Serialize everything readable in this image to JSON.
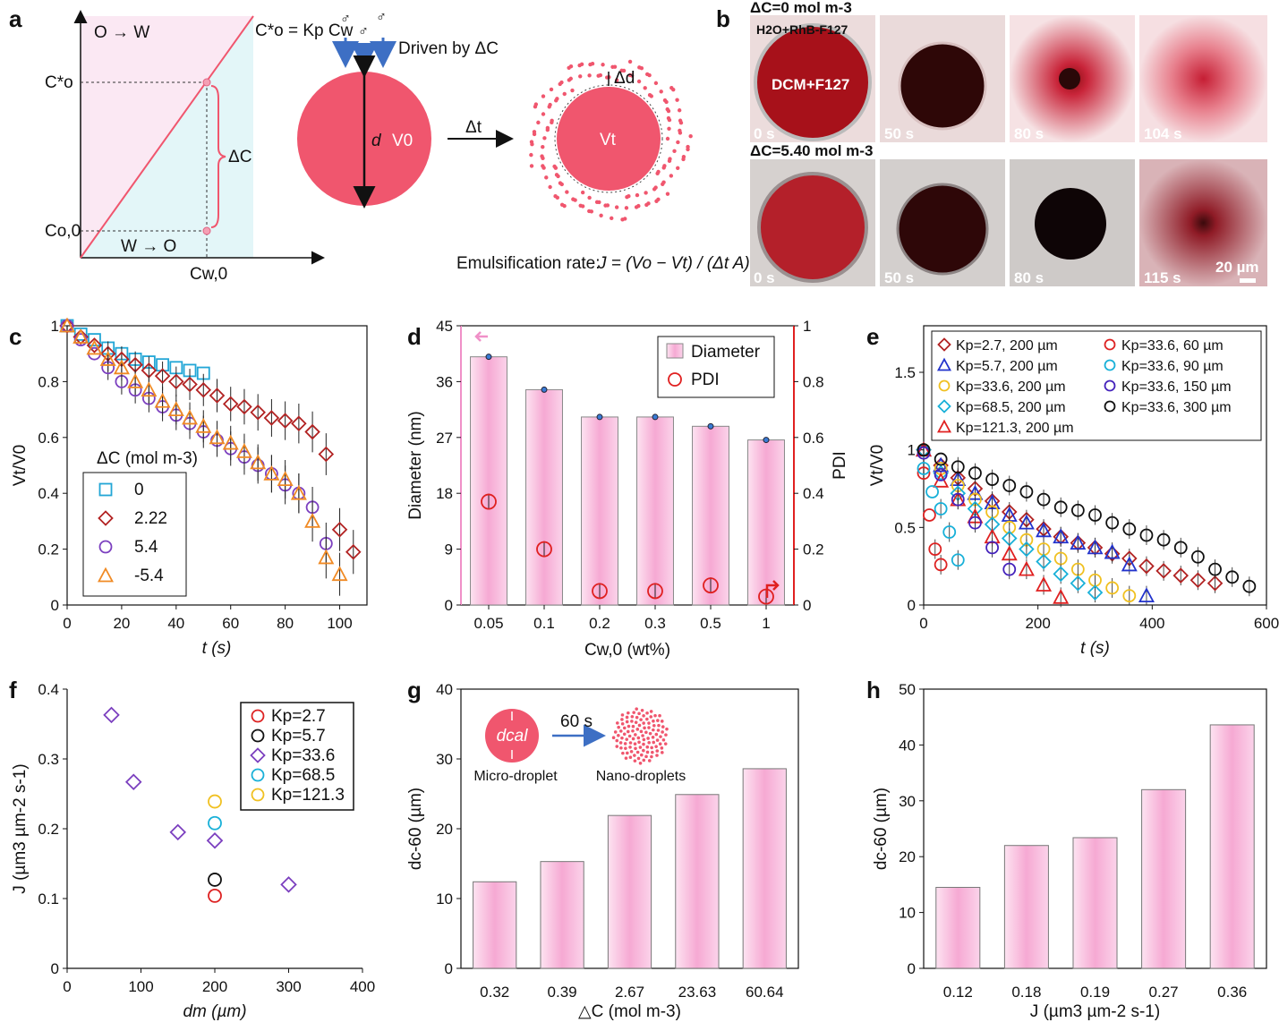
{
  "panel_labels": [
    "a",
    "b",
    "c",
    "d",
    "e",
    "f",
    "g",
    "h"
  ],
  "panel_a": {
    "region_top": "O → W",
    "region_bottom": "W → O",
    "equation": "C*o = Kp Cw",
    "y_labels": [
      "C*o",
      "Co,0"
    ],
    "x_label": "Cw,0",
    "delta_label": "ΔC",
    "driven_label": "Driven by ΔC",
    "d_label": "d",
    "v0_label": "V0",
    "vt_label": "Vt",
    "dt_label": "Δt",
    "dd_label": "Δd",
    "rate_label": "Emulsification rate:",
    "rate_formula": "J = (Vo − Vt) / (Δt A)"
  },
  "panel_b": {
    "row1_title": "ΔC=0 mol m-3",
    "row2_title": "ΔC=5.40 mol m-3",
    "inset_top": "H2O+RhB-F127",
    "inset_drop": "DCM+F127",
    "row1_times": [
      "0 s",
      "50 s",
      "80 s",
      "104 s"
    ],
    "row2_times": [
      "0 s",
      "50 s",
      "80 s",
      "115 s"
    ],
    "scale_bar": "20 µm"
  },
  "chart_data": [
    {
      "id": "c",
      "type": "scatter",
      "xlabel": "t (s)",
      "ylabel": "Vt/V0",
      "xlim": [
        0,
        110
      ],
      "ylim": [
        0,
        1
      ],
      "xticks": [
        0,
        20,
        40,
        60,
        80,
        100
      ],
      "yticks": [
        0,
        0.2,
        0.4,
        0.6,
        0.8,
        1
      ],
      "legend_title": "ΔC (mol m-3)",
      "series": [
        {
          "name": "0",
          "marker": "square",
          "color": "#22a6d6",
          "x": [
            0,
            5,
            10,
            15,
            20,
            25,
            30,
            35,
            40,
            45,
            50
          ],
          "y": [
            1,
            0.97,
            0.95,
            0.92,
            0.9,
            0.88,
            0.87,
            0.86,
            0.85,
            0.84,
            0.83
          ]
        },
        {
          "name": "2.22",
          "marker": "diamond",
          "color": "#b22222",
          "x": [
            0,
            5,
            10,
            15,
            20,
            25,
            30,
            35,
            40,
            45,
            50,
            55,
            60,
            65,
            70,
            75,
            80,
            85,
            90,
            95,
            100,
            105
          ],
          "y": [
            1,
            0.96,
            0.93,
            0.9,
            0.88,
            0.86,
            0.84,
            0.82,
            0.8,
            0.79,
            0.77,
            0.75,
            0.72,
            0.71,
            0.69,
            0.67,
            0.66,
            0.65,
            0.62,
            0.54,
            0.27,
            0.19
          ]
        },
        {
          "name": "5.4",
          "marker": "circle",
          "color": "#7b3fbf",
          "x": [
            0,
            5,
            10,
            15,
            20,
            25,
            30,
            35,
            40,
            45,
            50,
            55,
            60,
            65,
            70,
            75,
            80,
            85,
            90,
            95
          ],
          "y": [
            1,
            0.95,
            0.9,
            0.85,
            0.8,
            0.77,
            0.74,
            0.71,
            0.68,
            0.65,
            0.62,
            0.59,
            0.56,
            0.53,
            0.5,
            0.47,
            0.43,
            0.4,
            0.35,
            0.22
          ]
        },
        {
          "name": "-5.4",
          "marker": "triangle",
          "color": "#f08a24",
          "x": [
            0,
            5,
            10,
            15,
            20,
            25,
            30,
            35,
            40,
            45,
            50,
            55,
            60,
            65,
            70,
            75,
            80,
            85,
            90,
            95,
            100
          ],
          "y": [
            1,
            0.96,
            0.92,
            0.88,
            0.85,
            0.8,
            0.77,
            0.73,
            0.7,
            0.67,
            0.64,
            0.6,
            0.58,
            0.55,
            0.51,
            0.47,
            0.45,
            0.4,
            0.3,
            0.17,
            0.11
          ]
        }
      ]
    },
    {
      "id": "d",
      "type": "bar",
      "categories": [
        "0.05",
        "0.1",
        "0.2",
        "0.3",
        "0.5",
        "1"
      ],
      "series": [
        {
          "name": "Diameter",
          "axis": "left",
          "values": [
            40,
            34.7,
            30.3,
            30.3,
            28.8,
            26.6
          ]
        },
        {
          "name": "PDI",
          "axis": "right",
          "values": [
            0.37,
            0.2,
            0.05,
            0.05,
            0.07,
            0.03
          ]
        }
      ],
      "xlabel": "Cw,0 (wt%)",
      "ylabel": "Diameter (nm)",
      "y2label": "PDI",
      "ylim": [
        0,
        45
      ],
      "yticks": [
        0,
        9,
        18,
        27,
        36,
        45
      ],
      "y2lim": [
        0,
        1
      ],
      "y2ticks": [
        0,
        0.2,
        0.4,
        0.6,
        0.8,
        1
      ]
    },
    {
      "id": "e",
      "type": "scatter",
      "xlabel": "t (s)",
      "ylabel": "Vt/V0",
      "xlim": [
        0,
        600
      ],
      "ylim": [
        0,
        1.8
      ],
      "xticks": [
        0,
        200,
        400,
        600
      ],
      "yticks": [
        0,
        0.5,
        1,
        1.5
      ],
      "series": [
        {
          "name": "Kp=2.7, 200 µm",
          "marker": "diamond",
          "color": "#b22222",
          "x": [
            0,
            30,
            60,
            90,
            120,
            150,
            180,
            210,
            240,
            270,
            300,
            330,
            360,
            390,
            420,
            450,
            480,
            510
          ],
          "y": [
            1,
            0.9,
            0.82,
            0.75,
            0.67,
            0.6,
            0.55,
            0.49,
            0.44,
            0.4,
            0.37,
            0.33,
            0.3,
            0.25,
            0.22,
            0.19,
            0.16,
            0.14
          ]
        },
        {
          "name": "Kp=5.7, 200 µm",
          "marker": "triangle",
          "color": "#2233cc",
          "x": [
            0,
            30,
            60,
            90,
            120,
            150,
            180,
            210,
            240,
            270,
            300,
            330,
            360,
            390
          ],
          "y": [
            1,
            0.9,
            0.81,
            0.72,
            0.66,
            0.58,
            0.53,
            0.48,
            0.44,
            0.4,
            0.37,
            0.34,
            0.26,
            0.06
          ]
        },
        {
          "name": "Kp=33.6, 200 µm",
          "marker": "circle",
          "color": "#f0c020",
          "x": [
            0,
            30,
            60,
            90,
            120,
            150,
            180,
            210,
            240,
            270,
            300,
            330,
            360
          ],
          "y": [
            1,
            0.88,
            0.77,
            0.68,
            0.6,
            0.5,
            0.42,
            0.36,
            0.3,
            0.23,
            0.16,
            0.11,
            0.06
          ]
        },
        {
          "name": "Kp=68.5, 200 µm",
          "marker": "diamond",
          "color": "#18b0d8",
          "x": [
            0,
            30,
            60,
            90,
            120,
            150,
            180,
            210,
            240,
            270,
            300
          ],
          "y": [
            1,
            0.85,
            0.72,
            0.62,
            0.52,
            0.43,
            0.36,
            0.28,
            0.2,
            0.14,
            0.08
          ]
        },
        {
          "name": "Kp=121.3, 200 µm",
          "marker": "triangle",
          "color": "#e02020",
          "x": [
            0,
            30,
            60,
            90,
            120,
            150,
            180,
            210,
            240
          ],
          "y": [
            1,
            0.8,
            0.68,
            0.57,
            0.44,
            0.33,
            0.23,
            0.13,
            0.05
          ]
        },
        {
          "name": "Kp=33.6, 60 µm",
          "marker": "circle",
          "color": "#dd2222",
          "x": [
            0,
            10,
            20,
            30
          ],
          "y": [
            0.85,
            0.58,
            0.36,
            0.26
          ]
        },
        {
          "name": "Kp=33.6, 90 µm",
          "marker": "circle",
          "color": "#18b0d8",
          "x": [
            0,
            15,
            30,
            45,
            60
          ],
          "y": [
            0.88,
            0.73,
            0.62,
            0.47,
            0.29
          ]
        },
        {
          "name": "Kp=33.6, 150 µm",
          "marker": "circle",
          "color": "#4422bb",
          "x": [
            0,
            30,
            60,
            90,
            120,
            150
          ],
          "y": [
            0.98,
            0.84,
            0.68,
            0.53,
            0.37,
            0.23
          ]
        },
        {
          "name": "Kp=33.6, 300 µm",
          "marker": "circle",
          "color": "#111111",
          "x": [
            0,
            30,
            60,
            90,
            120,
            150,
            180,
            210,
            240,
            270,
            300,
            330,
            360,
            390,
            420,
            450,
            480,
            510,
            540,
            570
          ],
          "y": [
            1,
            0.94,
            0.89,
            0.85,
            0.81,
            0.77,
            0.73,
            0.68,
            0.63,
            0.61,
            0.58,
            0.53,
            0.49,
            0.45,
            0.42,
            0.37,
            0.31,
            0.23,
            0.18,
            0.12
          ]
        }
      ]
    },
    {
      "id": "f",
      "type": "scatter",
      "xlabel": "dm (µm)",
      "ylabel": "J (µm3 µm-2 s-1)",
      "xlim": [
        0,
        400
      ],
      "ylim": [
        0,
        0.4
      ],
      "xticks": [
        0,
        100,
        200,
        300,
        400
      ],
      "yticks": [
        0,
        0.1,
        0.2,
        0.3,
        0.4
      ],
      "series": [
        {
          "name": "Kp=2.7",
          "marker": "circle",
          "color": "#dd2222",
          "x": [
            200
          ],
          "y": [
            0.104
          ]
        },
        {
          "name": "Kp=5.7",
          "marker": "circle",
          "color": "#111111",
          "x": [
            200
          ],
          "y": [
            0.127
          ]
        },
        {
          "name": "Kp=33.6",
          "marker": "diamond",
          "color": "#7b3fbf",
          "x": [
            60,
            90,
            150,
            200,
            300
          ],
          "y": [
            0.363,
            0.267,
            0.195,
            0.183,
            0.12
          ]
        },
        {
          "name": "Kp=68.5",
          "marker": "circle",
          "color": "#18b0d8",
          "x": [
            200
          ],
          "y": [
            0.208
          ]
        },
        {
          "name": "Kp=121.3",
          "marker": "circle",
          "color": "#f0c020",
          "x": [
            200
          ],
          "y": [
            0.239
          ]
        }
      ]
    },
    {
      "id": "g",
      "type": "bar",
      "categories": [
        "0.32",
        "0.39",
        "2.67",
        "23.63",
        "60.64"
      ],
      "values": [
        12.4,
        15.3,
        21.9,
        24.9,
        28.6
      ],
      "xlabel": "△C (mol m-3)",
      "ylabel": "dc-60 (µm)",
      "ylim": [
        0,
        40
      ],
      "yticks": [
        0,
        10,
        20,
        30,
        40
      ],
      "inset": {
        "dcal": "dcal",
        "arrow": "60 s",
        "left": "Micro-droplet",
        "right": "Nano-droplets"
      }
    },
    {
      "id": "h",
      "type": "bar",
      "categories": [
        "0.12",
        "0.18",
        "0.19",
        "0.27",
        "0.36"
      ],
      "values": [
        14.5,
        22,
        23.4,
        32,
        43.6
      ],
      "xlabel": "J (µm3 µm-2 s-1)",
      "ylabel": "dc-60 (µm)",
      "ylim": [
        0,
        50
      ],
      "yticks": [
        0,
        10,
        20,
        30,
        40,
        50
      ]
    }
  ],
  "colors": {
    "bar_fill": "#f7b9dc",
    "bar_edge": "#555555",
    "pink": "#f0566e"
  }
}
